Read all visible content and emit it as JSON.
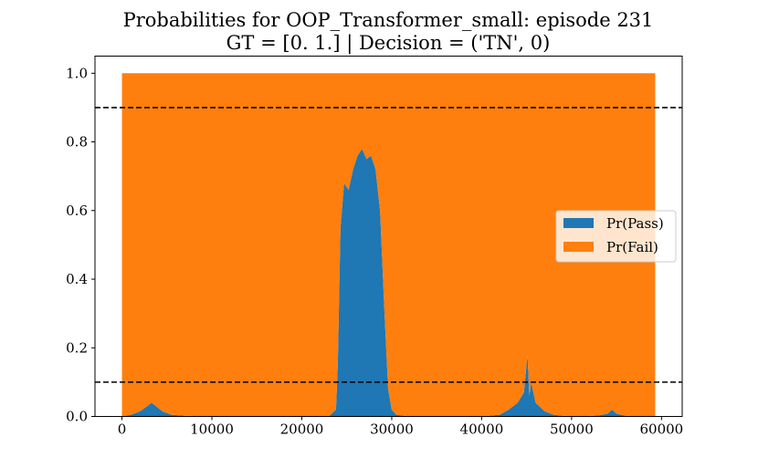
{
  "chart_data": {
    "type": "area",
    "title": "Probabilities for OOP_Transformer_small: episode 231",
    "subtitle": "GT = [0. 1.] | Decision = ('TN', 0)",
    "xlabel": "",
    "ylabel": "",
    "xlim": [
      -3000,
      62300
    ],
    "ylim": [
      0,
      1.05
    ],
    "x_ticks": [
      {
        "value": 0,
        "label": "0"
      },
      {
        "value": 10000,
        "label": "10000"
      },
      {
        "value": 20000,
        "label": "20000"
      },
      {
        "value": 30000,
        "label": "30000"
      },
      {
        "value": 40000,
        "label": "40000"
      },
      {
        "value": 50000,
        "label": "50000"
      },
      {
        "value": 60000,
        "label": "60000"
      }
    ],
    "y_ticks": [
      {
        "value": 0.0,
        "label": "0.0"
      },
      {
        "value": 0.2,
        "label": "0.2"
      },
      {
        "value": 0.4,
        "label": "0.4"
      },
      {
        "value": 0.6,
        "label": "0.6"
      },
      {
        "value": 0.8,
        "label": "0.8"
      },
      {
        "value": 1.0,
        "label": "1.0"
      }
    ],
    "grid": false,
    "legend": {
      "placement": "center-right"
    },
    "thresholds": [
      0.9,
      0.1
    ],
    "x": [
      0,
      1000,
      2000,
      2800,
      3300,
      3800,
      4500,
      5500,
      7000,
      10000,
      15000,
      20000,
      23000,
      23800,
      24000,
      24300,
      24700,
      25200,
      25700,
      26200,
      26700,
      27200,
      27700,
      28200,
      28700,
      29200,
      29600,
      30000,
      30500,
      32000,
      36000,
      40000,
      42000,
      43000,
      44000,
      44700,
      45100,
      45300,
      45500,
      46000,
      47000,
      48000,
      49000,
      51000,
      53000,
      54000,
      54500,
      55000,
      56000,
      58000,
      59300
    ],
    "series": [
      {
        "name": "Pr(Pass)",
        "color": "#1f77b4",
        "values": [
          0.0,
          0.005,
          0.015,
          0.03,
          0.04,
          0.03,
          0.015,
          0.005,
          0.002,
          0.0,
          0.0,
          0.0,
          0.0,
          0.02,
          0.15,
          0.55,
          0.68,
          0.66,
          0.72,
          0.76,
          0.78,
          0.75,
          0.76,
          0.72,
          0.6,
          0.3,
          0.08,
          0.02,
          0.005,
          0.0,
          0.0,
          0.0,
          0.005,
          0.02,
          0.04,
          0.07,
          0.18,
          0.06,
          0.1,
          0.04,
          0.015,
          0.005,
          0.002,
          0.0,
          0.003,
          0.008,
          0.02,
          0.008,
          0.002,
          0.0,
          0.0
        ]
      },
      {
        "name": "Pr(Fail)",
        "color": "#ff7f0e",
        "values": [
          1.0,
          0.995,
          0.985,
          0.97,
          0.96,
          0.97,
          0.985,
          0.995,
          0.998,
          1.0,
          1.0,
          1.0,
          1.0,
          0.98,
          0.85,
          0.45,
          0.32,
          0.34,
          0.28,
          0.24,
          0.22,
          0.25,
          0.24,
          0.28,
          0.4,
          0.7,
          0.92,
          0.98,
          0.995,
          1.0,
          1.0,
          1.0,
          0.995,
          0.98,
          0.96,
          0.93,
          0.82,
          0.94,
          0.9,
          0.96,
          0.985,
          0.995,
          0.998,
          1.0,
          0.997,
          0.992,
          0.98,
          0.992,
          0.998,
          1.0,
          1.0
        ]
      }
    ]
  }
}
